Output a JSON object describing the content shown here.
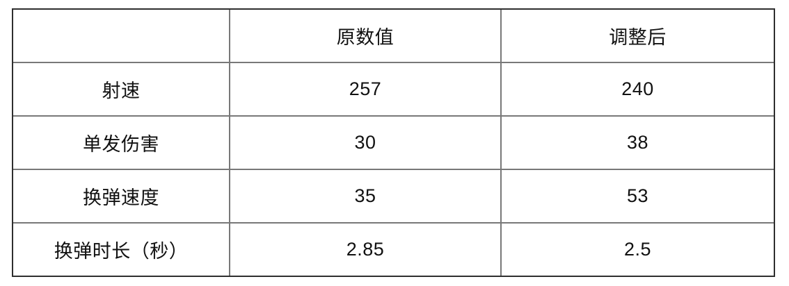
{
  "table": {
    "columns": [
      "",
      "原数值",
      "调整后"
    ],
    "rows": [
      {
        "label": "射速",
        "original": "257",
        "adjusted": "240"
      },
      {
        "label": "单发伤害",
        "original": "30",
        "adjusted": "38"
      },
      {
        "label": "换弹速度",
        "original": "35",
        "adjusted": "53"
      },
      {
        "label": "换弹时长（秒）",
        "original": "2.85",
        "adjusted": "2.5"
      }
    ]
  },
  "colors": {
    "background": "#ffffff",
    "outer_border": "#2e2e2e",
    "inner_grid": "#787878",
    "text": "#111111"
  }
}
